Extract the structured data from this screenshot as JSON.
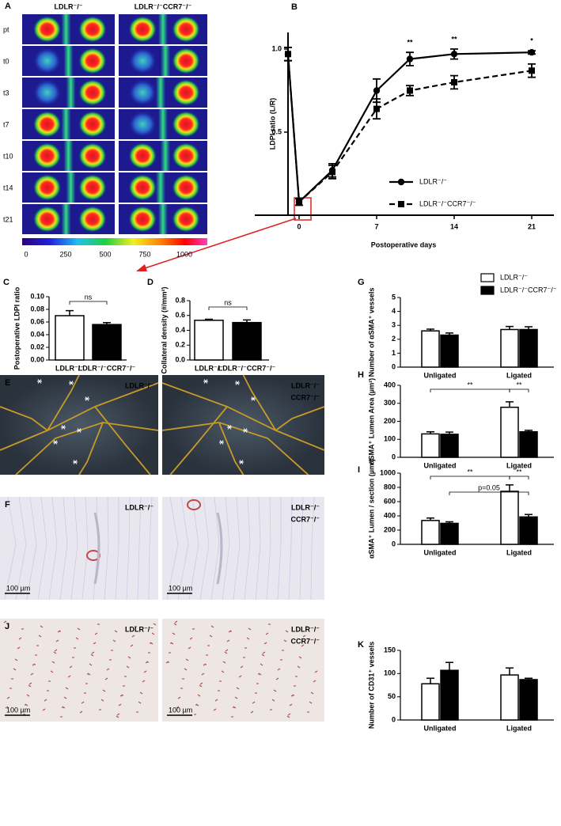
{
  "figure": {
    "A": {
      "panel": "A",
      "columns": [
        "LDLR⁻/⁻",
        "LDLR⁻/⁻CCR7⁻/⁻"
      ],
      "rows": [
        "pt",
        "t0",
        "t3",
        "t7",
        "t10",
        "t14",
        "t21"
      ],
      "colorbar": [
        0,
        250,
        500,
        750,
        1000
      ]
    },
    "E": {
      "panel": "E",
      "left": "LDLR⁻/⁻",
      "right": [
        "LDLR⁻/⁻",
        "CCR7⁻/⁻"
      ]
    },
    "F": {
      "panel": "F",
      "left": "LDLR⁻/⁻",
      "right": [
        "LDLR⁻/⁻",
        "CCR7⁻/⁻"
      ],
      "scalebar": "100 µm"
    },
    "J": {
      "panel": "J",
      "left": "LDLR⁻/⁻",
      "right": [
        "LDLR⁻/⁻",
        "CCR7⁻/⁻"
      ],
      "scalebar": "100 µm"
    }
  },
  "chart_data": [
    {
      "type": "line",
      "panel": "B",
      "ylabel": "LDPI ratio (L/R)",
      "xlabel": "Postoperative days",
      "x": [
        -1,
        0,
        3,
        7,
        10,
        14,
        21
      ],
      "xlim": [
        -4,
        23
      ],
      "ylim": [
        0,
        1.1
      ],
      "xticks": [
        0,
        7,
        14,
        21
      ],
      "yticks": [
        0.5,
        {
          "value": 1,
          "label": "1.0"
        }
      ],
      "series": [
        {
          "name": "LDLR⁻/⁻",
          "color": "#000000",
          "marker": "circle",
          "dashed": false,
          "values": [
            0.97,
            0.08,
            0.27,
            0.75,
            0.94,
            0.97,
            0.98
          ],
          "errors": [
            0.04,
            0.02,
            0.04,
            0.07,
            0.04,
            0.03,
            0.01
          ]
        },
        {
          "name": "LDLR⁻/⁻CCR7⁻/⁻",
          "color": "#000000",
          "marker": "square",
          "dashed": true,
          "values": [
            0.97,
            0.08,
            0.26,
            0.64,
            0.75,
            0.8,
            0.87
          ],
          "errors": [
            0.04,
            0.02,
            0.04,
            0.06,
            0.03,
            0.04,
            0.04
          ]
        }
      ],
      "annotations": [
        {
          "text": "**",
          "x": 10
        },
        {
          "text": "**",
          "x": 14
        },
        {
          "text": "*",
          "x": 21
        }
      ]
    },
    {
      "type": "bar",
      "panel": "C",
      "ylabel": "Postoperative LDPI ratio",
      "categories": [
        "LDLR⁻/⁻",
        "LDLR⁻/⁻CCR7⁻/⁻"
      ],
      "values": [
        0.07,
        0.056
      ],
      "errors": [
        0.008,
        0.003
      ],
      "colors": [
        "#ffffff",
        "#000000"
      ],
      "ylim": [
        0,
        0.1
      ],
      "yticks": [
        {
          "value": 0,
          "label": "0.00"
        },
        0.02,
        0.04,
        0.06,
        0.08,
        {
          "value": 0.1,
          "label": "0.10"
        }
      ],
      "annotations": [
        "ns"
      ]
    },
    {
      "type": "bar",
      "panel": "D",
      "ylabel": "Collateral density (#/mm²)",
      "categories": [
        "LDLR⁻/⁻",
        "LDLR⁻/⁻CCR7⁻/⁻"
      ],
      "values": [
        0.535,
        0.505
      ],
      "errors": [
        0.015,
        0.035
      ],
      "colors": [
        "#ffffff",
        "#000000"
      ],
      "ylim": [
        0,
        0.8
      ],
      "yticks": [
        {
          "value": 0,
          "label": "0.0"
        },
        0.2,
        0.4,
        0.6,
        0.8
      ],
      "annotations": [
        "ns"
      ]
    },
    {
      "type": "bar",
      "panel": "G",
      "ylabel": "Number of αSMA⁺ vessels",
      "categories": [
        "Unligated",
        "Ligated"
      ],
      "series": [
        {
          "name": "LDLR⁻/⁻",
          "color": "#ffffff",
          "values": [
            2.6,
            2.7
          ],
          "errors": [
            0.13,
            0.22
          ]
        },
        {
          "name": "LDLR⁻/⁻CCR7⁻/⁻",
          "color": "#000000",
          "values": [
            2.3,
            2.7
          ],
          "errors": [
            0.15,
            0.2
          ]
        }
      ],
      "ylim": [
        0,
        5
      ],
      "yticks": [
        0,
        1,
        2,
        3,
        4,
        5
      ],
      "annotations": []
    },
    {
      "type": "bar",
      "panel": "H",
      "ylabel": "αSMA⁺ Lumen Area (µm²)",
      "categories": [
        "Unligated",
        "Ligated"
      ],
      "series": [
        {
          "color": "#ffffff",
          "values": [
            130,
            278
          ],
          "errors": [
            12,
            30
          ]
        },
        {
          "color": "#000000",
          "values": [
            128,
            142
          ],
          "errors": [
            12,
            8
          ]
        }
      ],
      "ylim": [
        0,
        400
      ],
      "yticks": [
        0,
        100,
        200,
        300,
        400
      ],
      "annotations": [
        "**",
        "**"
      ]
    },
    {
      "type": "bar",
      "panel": "I",
      "ylabel": "αSMA⁺ Lumen / section (µm²)",
      "categories": [
        "Unligated",
        "Ligated"
      ],
      "series": [
        {
          "color": "#ffffff",
          "values": [
            335,
            745
          ],
          "errors": [
            35,
            90
          ]
        },
        {
          "color": "#000000",
          "values": [
            295,
            385
          ],
          "errors": [
            22,
            35
          ]
        }
      ],
      "ylim": [
        0,
        1000
      ],
      "yticks": [
        0,
        200,
        400,
        600,
        800,
        1000
      ],
      "annotations": [
        "**",
        "**",
        "p=0.05"
      ]
    },
    {
      "type": "bar",
      "panel": "K",
      "ylabel": "Number of CD31⁺ vessels",
      "categories": [
        "Unligated",
        "Ligated"
      ],
      "series": [
        {
          "color": "#ffffff",
          "values": [
            78,
            97
          ],
          "errors": [
            12,
            15
          ]
        },
        {
          "color": "#000000",
          "values": [
            107,
            87
          ],
          "errors": [
            17,
            3
          ]
        }
      ],
      "ylim": [
        0,
        150
      ],
      "yticks": [
        0,
        50,
        100,
        150
      ],
      "annotations": []
    }
  ]
}
